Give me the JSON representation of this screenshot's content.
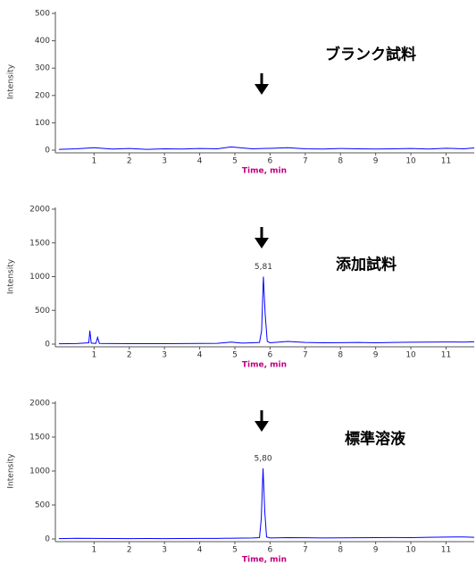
{
  "chart_data": [
    {
      "type": "line",
      "annotation": "ブランク試料",
      "y_label": "Intensity",
      "x_label": "Time, min",
      "xlim": [
        -0.1,
        11.8
      ],
      "xticks": [
        1,
        2,
        3,
        4,
        5,
        6,
        7,
        8,
        9,
        10,
        11
      ],
      "ylim": [
        0,
        500
      ],
      "yticks": [
        0,
        100,
        200,
        300,
        400,
        500
      ],
      "x": [
        0,
        0.5,
        1,
        1.5,
        2,
        2.5,
        3,
        3.5,
        4,
        4.5,
        4.9,
        5.2,
        5.5,
        5.81,
        6.1,
        6.5,
        7,
        7.5,
        8,
        8.5,
        9,
        9.5,
        10,
        10.5,
        11,
        11.5,
        11.8
      ],
      "series": [
        {
          "color": "#0000ff",
          "values": [
            3,
            5,
            9,
            4,
            6,
            3,
            5,
            4,
            6,
            5,
            12,
            8,
            5,
            6,
            7,
            9,
            5,
            4,
            6,
            5,
            4,
            5,
            6,
            4,
            7,
            5,
            8
          ]
        }
      ]
    },
    {
      "type": "line",
      "annotation": "添加試料",
      "y_label": "Intensity",
      "x_label": "Time, min",
      "peak_label": "5,81",
      "xlim": [
        -0.1,
        11.8
      ],
      "xticks": [
        1,
        2,
        3,
        4,
        5,
        6,
        7,
        8,
        9,
        10,
        11
      ],
      "ylim": [
        0,
        2000
      ],
      "yticks": [
        0,
        500,
        1000,
        1500,
        2000
      ],
      "x": [
        0,
        0.5,
        0.85,
        0.88,
        0.92,
        1.05,
        1.1,
        1.15,
        1.5,
        2,
        2.5,
        3,
        3.5,
        4,
        4.5,
        4.9,
        5.2,
        5.5,
        5.7,
        5.76,
        5.81,
        5.86,
        5.92,
        6.0,
        6.5,
        7,
        7.5,
        8,
        8.5,
        9,
        9.5,
        10,
        10.5,
        11,
        11.5,
        11.8
      ],
      "series": [
        {
          "color": "#0000ff",
          "values": [
            5,
            8,
            20,
            200,
            15,
            10,
            100,
            10,
            8,
            6,
            7,
            6,
            8,
            10,
            12,
            30,
            15,
            20,
            25,
            200,
            1000,
            450,
            40,
            20,
            40,
            25,
            20,
            22,
            25,
            20,
            25,
            28,
            30,
            32,
            30,
            35
          ]
        }
      ]
    },
    {
      "type": "line",
      "annotation": "標準溶液",
      "y_label": "Intensity",
      "x_label": "Time, min",
      "peak_label": "5,80",
      "xlim": [
        -0.1,
        11.8
      ],
      "xticks": [
        1,
        2,
        3,
        4,
        5,
        6,
        7,
        8,
        9,
        10,
        11
      ],
      "ylim": [
        0,
        2000
      ],
      "yticks": [
        0,
        500,
        1000,
        1500,
        2000
      ],
      "x": [
        0,
        0.5,
        1,
        1.5,
        2,
        2.5,
        3,
        3.5,
        4,
        4.5,
        5,
        5.5,
        5.7,
        5.75,
        5.8,
        5.85,
        5.9,
        6.0,
        6.5,
        7,
        7.5,
        8,
        8.5,
        9,
        9.5,
        10,
        10.5,
        11,
        11.5,
        11.8
      ],
      "series": [
        {
          "color": "#0000ff",
          "values": [
            5,
            10,
            8,
            6,
            5,
            6,
            5,
            7,
            8,
            9,
            12,
            15,
            20,
            300,
            1040,
            400,
            30,
            15,
            20,
            18,
            15,
            16,
            18,
            20,
            22,
            20,
            25,
            28,
            30,
            25
          ]
        }
      ]
    }
  ]
}
